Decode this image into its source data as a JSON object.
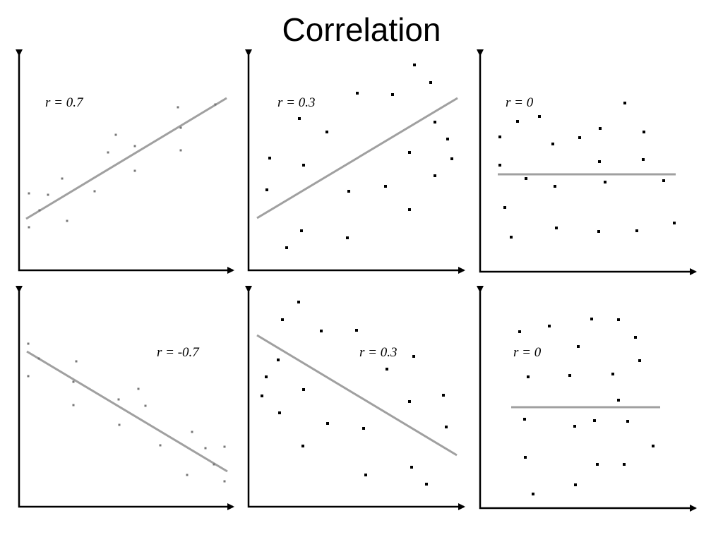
{
  "header": {
    "title": "Correlation"
  },
  "panels": [
    {
      "label": "r = 0.7"
    },
    {
      "label": "r = 0.3"
    },
    {
      "label": "r = 0"
    },
    {
      "label": "r = -0.7"
    },
    {
      "label": "r = 0.3"
    },
    {
      "label": "r = 0"
    }
  ]
}
